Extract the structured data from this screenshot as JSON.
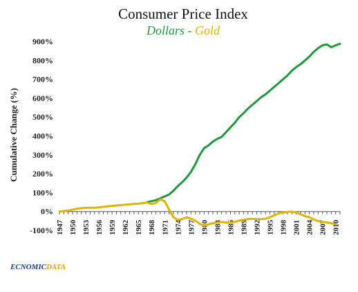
{
  "chart_data": {
    "type": "line",
    "title": "Consumer Price Index",
    "subtitle": {
      "series1": "Dollars",
      "separator": " - ",
      "series2": "Gold"
    },
    "ylabel": "Cumulative Change (%)",
    "xlabel": "",
    "ylim": [
      -100,
      900
    ],
    "yticks": [
      -100,
      0,
      100,
      200,
      300,
      400,
      500,
      600,
      700,
      800,
      900
    ],
    "ytick_labels": [
      "-100%",
      "0%",
      "100%",
      "200%",
      "300%",
      "400%",
      "500%",
      "600%",
      "700%",
      "800%",
      "900%"
    ],
    "xlim": [
      1947,
      2011
    ],
    "xticks": [
      1947,
      1950,
      1953,
      1956,
      1959,
      1962,
      1965,
      1968,
      1971,
      1974,
      1977,
      1980,
      1983,
      1986,
      1989,
      1992,
      1995,
      1998,
      2001,
      2004,
      2007,
      2010
    ],
    "grid": false,
    "legend": "none",
    "series": [
      {
        "name": "Dollars",
        "color": "#1e9a3a",
        "points": [
          [
            1967,
            50
          ],
          [
            1968,
            55
          ],
          [
            1969,
            60
          ],
          [
            1970,
            70
          ],
          [
            1971,
            80
          ],
          [
            1972,
            90
          ],
          [
            1973,
            110
          ],
          [
            1974,
            135
          ],
          [
            1975,
            155
          ],
          [
            1976,
            180
          ],
          [
            1977,
            210
          ],
          [
            1978,
            250
          ],
          [
            1979,
            300
          ],
          [
            1980,
            335
          ],
          [
            1981,
            350
          ],
          [
            1982,
            370
          ],
          [
            1983,
            385
          ],
          [
            1984,
            395
          ],
          [
            1985,
            420
          ],
          [
            1986,
            445
          ],
          [
            1987,
            470
          ],
          [
            1988,
            500
          ],
          [
            1989,
            520
          ],
          [
            1990,
            545
          ],
          [
            1991,
            565
          ],
          [
            1992,
            585
          ],
          [
            1993,
            605
          ],
          [
            1994,
            620
          ],
          [
            1995,
            640
          ],
          [
            1996,
            660
          ],
          [
            1997,
            680
          ],
          [
            1998,
            700
          ],
          [
            1999,
            720
          ],
          [
            2000,
            745
          ],
          [
            2001,
            765
          ],
          [
            2002,
            780
          ],
          [
            2003,
            800
          ],
          [
            2004,
            820
          ],
          [
            2005,
            845
          ],
          [
            2006,
            865
          ],
          [
            2007,
            880
          ],
          [
            2008,
            885
          ],
          [
            2009,
            870
          ],
          [
            2010,
            880
          ],
          [
            2011,
            888
          ]
        ]
      },
      {
        "name": "Gold",
        "color": "#e0b400",
        "points": [
          [
            1947,
            0
          ],
          [
            1949,
            5
          ],
          [
            1951,
            15
          ],
          [
            1953,
            20
          ],
          [
            1955,
            20
          ],
          [
            1956,
            22
          ],
          [
            1958,
            28
          ],
          [
            1960,
            32
          ],
          [
            1962,
            36
          ],
          [
            1964,
            40
          ],
          [
            1966,
            44
          ],
          [
            1967,
            48
          ],
          [
            1968,
            40
          ],
          [
            1969,
            45
          ],
          [
            1970,
            65
          ],
          [
            1971,
            55
          ],
          [
            1972,
            10
          ],
          [
            1973,
            -30
          ],
          [
            1974,
            -45
          ],
          [
            1975,
            -40
          ],
          [
            1976,
            -30
          ],
          [
            1977,
            -38
          ],
          [
            1978,
            -48
          ],
          [
            1979,
            -65
          ],
          [
            1980,
            -75
          ],
          [
            1981,
            -68
          ],
          [
            1982,
            -62
          ],
          [
            1983,
            -58
          ],
          [
            1984,
            -55
          ],
          [
            1985,
            -58
          ],
          [
            1986,
            -60
          ],
          [
            1987,
            -55
          ],
          [
            1988,
            -48
          ],
          [
            1989,
            -44
          ],
          [
            1990,
            -40
          ],
          [
            1991,
            -38
          ],
          [
            1992,
            -40
          ],
          [
            1993,
            -40
          ],
          [
            1994,
            -38
          ],
          [
            1995,
            -30
          ],
          [
            1996,
            -20
          ],
          [
            1997,
            -10
          ],
          [
            1998,
            -5
          ],
          [
            1999,
            -2
          ],
          [
            2000,
            0
          ],
          [
            2001,
            -5
          ],
          [
            2002,
            -15
          ],
          [
            2003,
            -25
          ],
          [
            2004,
            -30
          ],
          [
            2005,
            -42
          ],
          [
            2006,
            -50
          ],
          [
            2007,
            -55
          ],
          [
            2008,
            -58
          ],
          [
            2009,
            -62
          ],
          [
            2010,
            -68
          ]
        ]
      }
    ]
  },
  "brand": {
    "prefix": "EC",
    "middle": "NOMIC",
    "suffix": "DATA"
  }
}
